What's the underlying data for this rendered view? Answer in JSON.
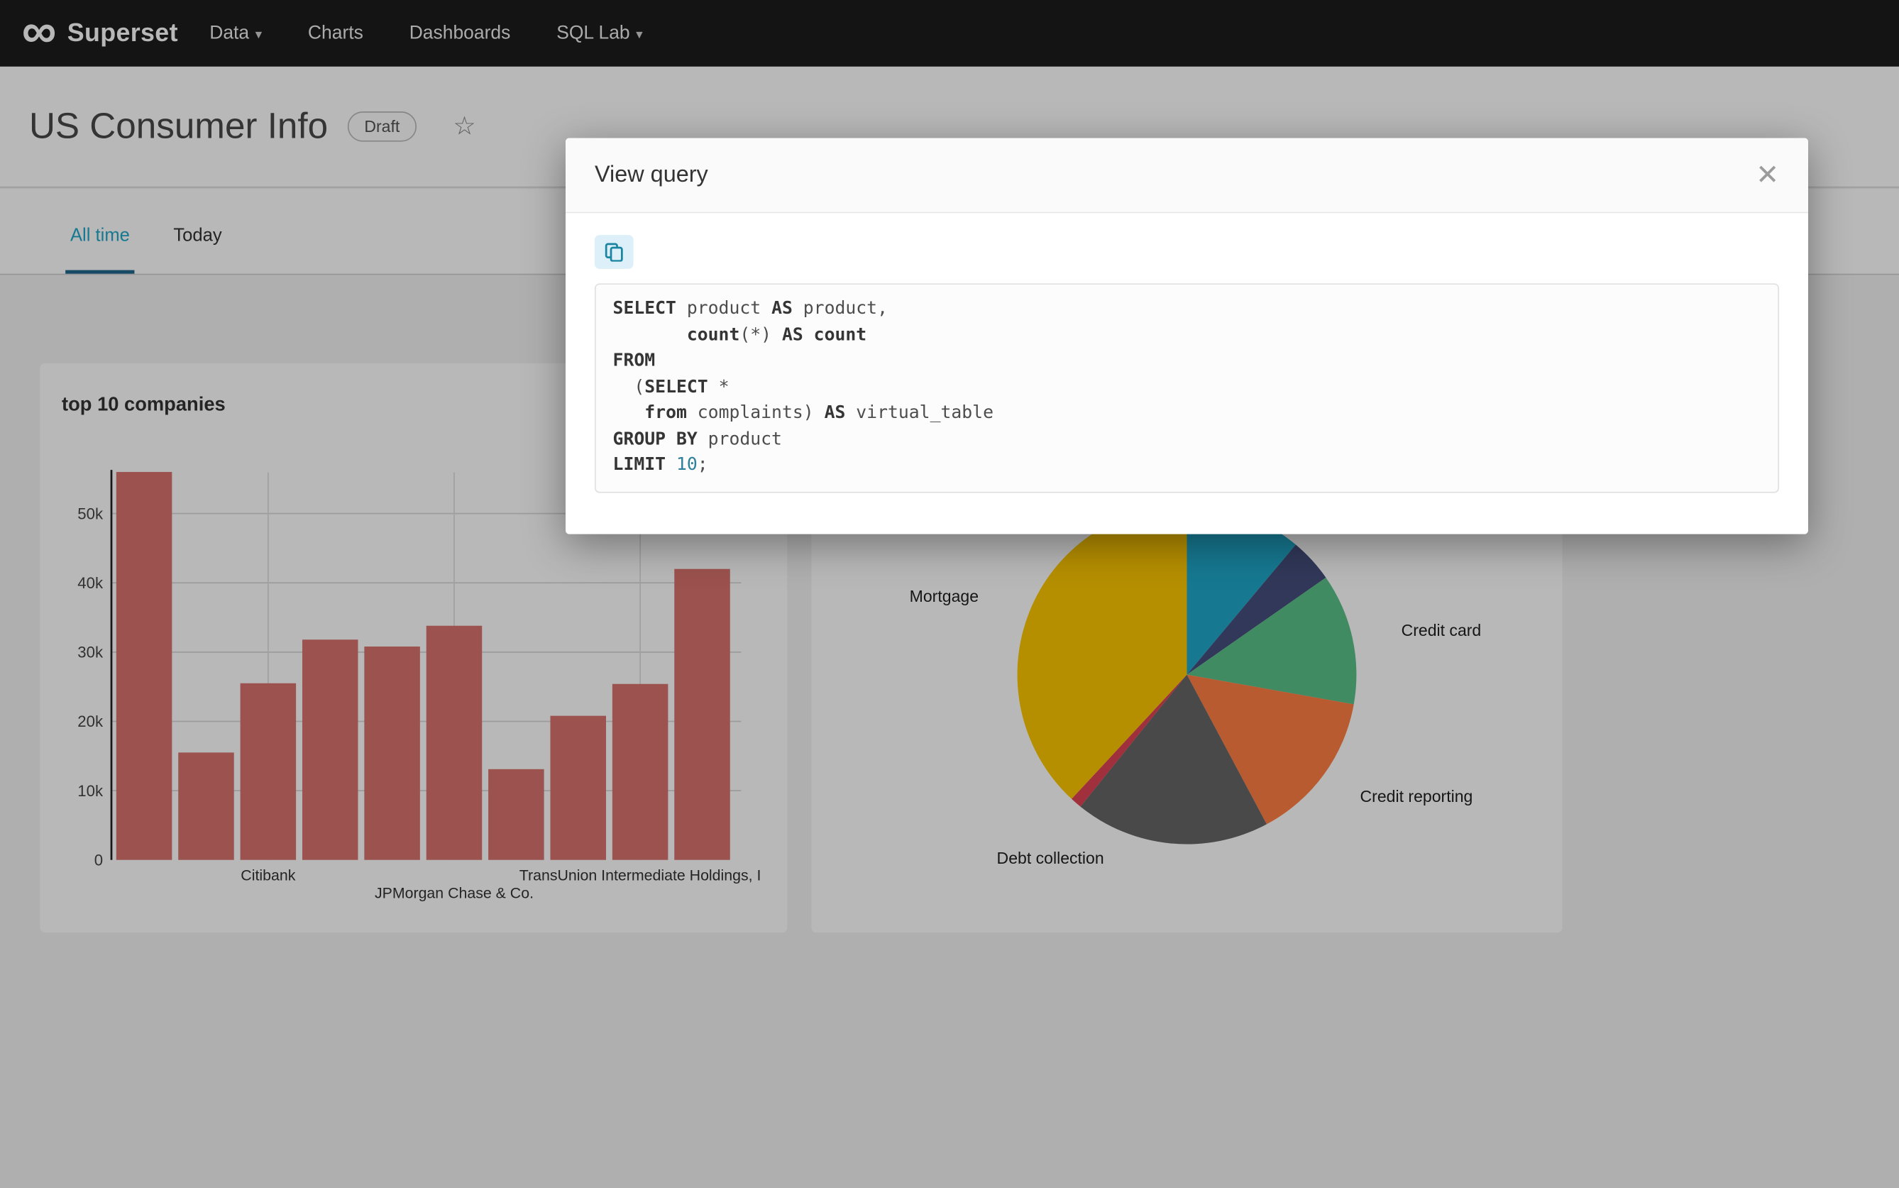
{
  "icons": {
    "logo_glyph": "∞",
    "caret_glyph": "▾",
    "star_glyph": "☆",
    "close_glyph": "✕"
  },
  "navbar": {
    "brand": "Superset",
    "items": [
      {
        "label": "Data",
        "caret": true
      },
      {
        "label": "Charts",
        "caret": false
      },
      {
        "label": "Dashboards",
        "caret": false
      },
      {
        "label": "SQL Lab",
        "caret": true
      }
    ]
  },
  "header": {
    "title": "US Consumer Info",
    "status_badge": "Draft"
  },
  "tabs": [
    {
      "label": "All time",
      "active": true
    },
    {
      "label": "Today",
      "active": false
    }
  ],
  "modal": {
    "title": "View query",
    "sql_lines": [
      [
        [
          "k",
          "SELECT"
        ],
        [
          "p",
          " product "
        ],
        [
          "k",
          "AS"
        ],
        [
          "p",
          " product,"
        ]
      ],
      [
        [
          "p",
          "       "
        ],
        [
          "k",
          "count"
        ],
        [
          "p",
          "(*) "
        ],
        [
          "k",
          "AS"
        ],
        [
          "p",
          " "
        ],
        [
          "k",
          "count"
        ]
      ],
      [
        [
          "k",
          "FROM"
        ]
      ],
      [
        [
          "p",
          "  ("
        ],
        [
          "k",
          "SELECT"
        ],
        [
          "p",
          " *"
        ]
      ],
      [
        [
          "p",
          "   "
        ],
        [
          "k",
          "from"
        ],
        [
          "p",
          " complaints) "
        ],
        [
          "k",
          "AS"
        ],
        [
          "p",
          " virtual_table"
        ]
      ],
      [
        [
          "k",
          "GROUP BY"
        ],
        [
          "p",
          " product"
        ]
      ],
      [
        [
          "k",
          "LIMIT"
        ],
        [
          "p",
          " "
        ],
        [
          "n",
          "10"
        ],
        [
          "p",
          ";"
        ]
      ]
    ]
  },
  "chart_data": [
    {
      "type": "bar",
      "title": "top 10 companies",
      "values": [
        56000,
        15500,
        25500,
        31800,
        30800,
        33800,
        13100,
        20800,
        25400,
        42000
      ],
      "bar_color": "#D9726C",
      "ylabel": "",
      "xlabel": "",
      "ylim": [
        0,
        56000
      ],
      "y_ticks": [
        "0",
        "10k",
        "20k",
        "30k",
        "40k",
        "50k"
      ],
      "x_tick_labels": [
        {
          "text": "Citibank",
          "bar_index": 2,
          "row": 0
        },
        {
          "text": "JPMorgan Chase & Co.",
          "bar_index": 5,
          "row": 1
        },
        {
          "text": "TransUnion Intermediate Holdings, I",
          "bar_index": 8,
          "row": 0
        }
      ],
      "grid": true,
      "legend": "none"
    },
    {
      "type": "pie",
      "title": "",
      "slices": [
        {
          "label": "",
          "value": 11.1,
          "color": "#1FA8C9",
          "label_pos": null
        },
        {
          "label": "",
          "value": 4.2,
          "color": "#454E7C",
          "label_pos": null
        },
        {
          "label": "Credit card",
          "value": 12.5,
          "color": "#5AC189",
          "label_pos": {
            "x": 487,
            "y": 213
          }
        },
        {
          "label": "Credit reporting",
          "value": 14.4,
          "color": "#FF7F44",
          "label_pos": {
            "x": 453,
            "y": 350
          }
        },
        {
          "label": "Debt collection",
          "value": 18.6,
          "color": "#666666",
          "label_pos": {
            "x": 153,
            "y": 401
          }
        },
        {
          "label": "",
          "value": 1.1,
          "color": "#E04355",
          "label_pos": null
        },
        {
          "label": "Mortgage",
          "value": 38.1,
          "color": "#FCC700",
          "label_pos": {
            "x": 81,
            "y": 185
          }
        }
      ],
      "legend": "none"
    }
  ]
}
